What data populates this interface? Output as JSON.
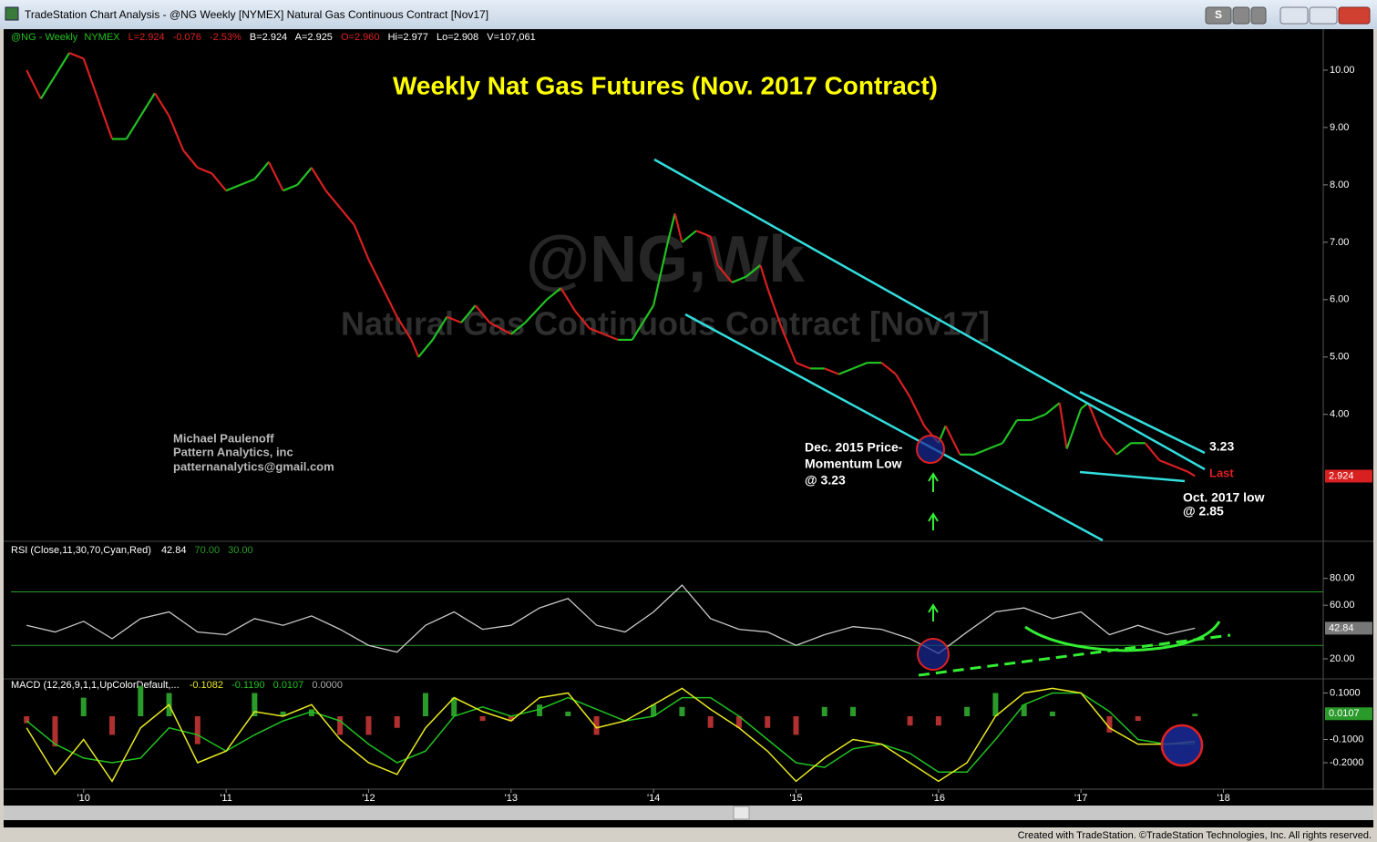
{
  "window": {
    "title": "TradeStation Chart Analysis - @NG Weekly [NYMEX] Natural Gas Continuous Contract [Nov17]",
    "quote": [
      "@NG - Weekly",
      "NYMEX",
      "L=2.924",
      "-0.076",
      "-2.53%",
      "B=2.924",
      "A=2.925",
      "O=2.960",
      "Hi=2.977",
      "Lo=2.908",
      "V=107,061"
    ],
    "footer": "Created with TradeStation. ©TradeStation Technologies, Inc. All rights reserved.",
    "button": "S"
  },
  "chart_data": [
    {
      "type": "candlestick-line",
      "title": "Weekly Nat Gas Futures (Nov. 2017 Contract)",
      "watermark": [
        "@NG,Wk",
        "Natural Gas Continuous Contract [Nov17]"
      ],
      "author": [
        "Michael Paulenoff",
        "Pattern Analytics, inc",
        "patternanalytics@gmail.com"
      ],
      "dec_low": [
        "Dec. 2015 Price-",
        "Momentum Low",
        "@ 3.23"
      ],
      "level": "3.23",
      "last_text": "Last",
      "oct_low": [
        "Oct. 2017 low",
        "@ 2.85"
      ],
      "x": [
        2009.6,
        2009.7,
        2009.8,
        2009.9,
        2010.0,
        2010.1,
        2010.2,
        2010.3,
        2010.45,
        2010.5,
        2010.6,
        2010.7,
        2010.8,
        2010.9,
        2011.0,
        2011.1,
        2011.2,
        2011.3,
        2011.4,
        2011.5,
        2011.6,
        2011.7,
        2011.8,
        2011.9,
        2012.0,
        2012.1,
        2012.2,
        2012.3,
        2012.35,
        2012.45,
        2012.55,
        2012.65,
        2012.75,
        2012.85,
        2013.0,
        2013.1,
        2013.25,
        2013.35,
        2013.45,
        2013.55,
        2013.65,
        2013.75,
        2013.85,
        2014.0,
        2014.1,
        2014.15,
        2014.2,
        2014.3,
        2014.4,
        2014.45,
        2014.55,
        2014.65,
        2014.75,
        2014.8,
        2014.9,
        2015.0,
        2015.1,
        2015.2,
        2015.3,
        2015.4,
        2015.5,
        2015.6,
        2015.7,
        2015.8,
        2015.9,
        2016.0,
        2016.05,
        2016.15,
        2016.25,
        2016.35,
        2016.45,
        2016.55,
        2016.65,
        2016.75,
        2016.85,
        2016.9,
        2017.0,
        2017.05,
        2017.15,
        2017.25,
        2017.35,
        2017.45,
        2017.55,
        2017.65,
        2017.75,
        2017.8
      ],
      "values": [
        10.0,
        9.5,
        9.9,
        10.3,
        10.2,
        9.5,
        8.8,
        8.8,
        9.4,
        9.6,
        9.2,
        8.6,
        8.3,
        8.2,
        7.9,
        8.0,
        8.1,
        8.4,
        7.9,
        8.0,
        8.3,
        7.9,
        7.6,
        7.3,
        6.7,
        6.2,
        5.7,
        5.3,
        5.0,
        5.3,
        5.7,
        5.6,
        5.9,
        5.6,
        5.4,
        5.6,
        6.0,
        6.2,
        5.8,
        5.5,
        5.4,
        5.3,
        5.3,
        5.9,
        7.0,
        7.5,
        7.0,
        7.2,
        7.1,
        6.6,
        6.3,
        6.4,
        6.6,
        6.2,
        5.5,
        4.9,
        4.8,
        4.8,
        4.7,
        4.8,
        4.9,
        4.9,
        4.7,
        4.3,
        3.8,
        3.5,
        3.8,
        3.3,
        3.3,
        3.4,
        3.5,
        3.9,
        3.9,
        4.0,
        4.2,
        3.4,
        4.1,
        4.2,
        3.6,
        3.3,
        3.5,
        3.5,
        3.2,
        3.1,
        3.0,
        2.924
      ],
      "colors": {
        "up": "#22c022",
        "down": "#d82020"
      },
      "last_label": {
        "value": 2.924,
        "label": "2.924"
      },
      "ylim": [
        1.82,
        10.46
      ],
      "yticks": [
        {
          "value": 4,
          "label": "4.00"
        },
        {
          "value": 5,
          "label": "5.00"
        },
        {
          "value": 6,
          "label": "6.00"
        },
        {
          "value": 7,
          "label": "7.00"
        },
        {
          "value": 8,
          "label": "8.00"
        },
        {
          "value": 9,
          "label": "9.00"
        },
        {
          "value": 10,
          "label": "10.00"
        }
      ]
    },
    {
      "type": "line",
      "title": "RSI (Close,11,30,70,Cyan,Red)",
      "x": [
        2009.6,
        2009.8,
        2010.0,
        2010.2,
        2010.4,
        2010.6,
        2010.8,
        2011.0,
        2011.2,
        2011.4,
        2011.6,
        2011.8,
        2012.0,
        2012.2,
        2012.4,
        2012.6,
        2012.8,
        2013.0,
        2013.2,
        2013.4,
        2013.6,
        2013.8,
        2014.0,
        2014.2,
        2014.4,
        2014.6,
        2014.8,
        2015.0,
        2015.2,
        2015.4,
        2015.6,
        2015.8,
        2016.0,
        2016.2,
        2016.4,
        2016.6,
        2016.8,
        2017.0,
        2017.2,
        2017.4,
        2017.6,
        2017.8
      ],
      "values": [
        45,
        40,
        48,
        35,
        50,
        55,
        40,
        38,
        50,
        45,
        52,
        42,
        30,
        25,
        45,
        55,
        42,
        45,
        58,
        65,
        45,
        40,
        55,
        75,
        50,
        42,
        40,
        30,
        38,
        44,
        42,
        35,
        24,
        40,
        55,
        58,
        50,
        55,
        38,
        45,
        38,
        42.84
      ],
      "color": "#c8c8c8",
      "last_label": {
        "value": 42.84,
        "label": "42.84"
      },
      "levels": [
        {
          "value": 70,
          "label": "70.00",
          "color": "#2a9a2a"
        },
        {
          "value": 30,
          "label": "30.00",
          "color": "#2a9a2a"
        }
      ],
      "ylim": [
        5,
        105
      ],
      "yticks": [
        {
          "value": 20,
          "label": "20.00"
        },
        {
          "value": 60,
          "label": "60.00"
        },
        {
          "value": 80,
          "label": "80.00"
        }
      ]
    },
    {
      "type": "macd",
      "title": "MACD (12,26,9,1,1,UpColorDefault,...",
      "readings": [
        {
          "value": -0.1082,
          "label": "-0.1082"
        },
        {
          "value": -0.119,
          "label": "-0.1190"
        },
        {
          "value": 0.0107,
          "label": "0.0107"
        },
        {
          "value": 0,
          "label": "0.0000"
        }
      ],
      "x": [
        2009.6,
        2009.8,
        2010.0,
        2010.2,
        2010.4,
        2010.6,
        2010.8,
        2011.0,
        2011.2,
        2011.4,
        2011.6,
        2011.8,
        2012.0,
        2012.2,
        2012.4,
        2012.6,
        2012.8,
        2013.0,
        2013.2,
        2013.4,
        2013.6,
        2013.8,
        2014.0,
        2014.2,
        2014.4,
        2014.6,
        2014.8,
        2015.0,
        2015.2,
        2015.4,
        2015.6,
        2015.8,
        2016.0,
        2016.2,
        2016.4,
        2016.6,
        2016.8,
        2017.0,
        2017.2,
        2017.4,
        2017.6,
        2017.8
      ],
      "macd": {
        "color": "#e8e820",
        "values": [
          -0.05,
          -0.25,
          -0.1,
          -0.28,
          -0.05,
          0.05,
          -0.2,
          -0.15,
          0.02,
          0.0,
          0.05,
          -0.1,
          -0.2,
          -0.25,
          -0.05,
          0.08,
          0.02,
          -0.02,
          0.08,
          0.1,
          -0.05,
          -0.02,
          0.05,
          0.12,
          0.03,
          -0.05,
          -0.15,
          -0.28,
          -0.18,
          -0.1,
          -0.12,
          -0.2,
          -0.28,
          -0.2,
          0.0,
          0.1,
          0.12,
          0.1,
          -0.05,
          -0.12,
          -0.12,
          -0.1082
        ]
      },
      "signal": {
        "color": "#20c020",
        "values": [
          -0.02,
          -0.12,
          -0.18,
          -0.2,
          -0.18,
          -0.05,
          -0.08,
          -0.15,
          -0.08,
          -0.02,
          0.02,
          -0.02,
          -0.12,
          -0.2,
          -0.15,
          0.0,
          0.04,
          0.0,
          0.03,
          0.08,
          0.03,
          -0.02,
          0.0,
          0.08,
          0.08,
          0.0,
          -0.1,
          -0.2,
          -0.22,
          -0.14,
          -0.12,
          -0.16,
          -0.24,
          -0.24,
          -0.1,
          0.05,
          0.1,
          0.1,
          0.02,
          -0.1,
          -0.12,
          -0.119
        ]
      },
      "histogram": {
        "up": "#2a9a2a",
        "down": "#b03030",
        "values": [
          -0.03,
          -0.13,
          0.08,
          -0.08,
          0.13,
          0.1,
          -0.12,
          0.0,
          0.1,
          0.02,
          0.03,
          -0.08,
          -0.08,
          -0.05,
          0.1,
          0.08,
          -0.02,
          -0.02,
          0.05,
          0.02,
          -0.08,
          0.0,
          0.05,
          0.04,
          -0.05,
          -0.05,
          -0.05,
          -0.08,
          0.04,
          0.04,
          0.0,
          -0.04,
          -0.04,
          0.04,
          0.1,
          0.05,
          0.02,
          0.0,
          -0.07,
          -0.02,
          0.0,
          0.0107
        ]
      },
      "ylim": [
        -0.298,
        0.149
      ],
      "yticks": [
        {
          "value": 0.1,
          "label": "0.1000"
        },
        {
          "value": -0.1,
          "label": "-0.1000"
        },
        {
          "value": -0.2,
          "label": "-0.2000"
        }
      ],
      "xlim": [
        2009.49,
        2018.7
      ],
      "xticks": [
        {
          "value": 2010,
          "label": "'10"
        },
        {
          "value": 2011,
          "label": "'11"
        },
        {
          "value": 2012,
          "label": "'12"
        },
        {
          "value": 2013,
          "label": "'13"
        },
        {
          "value": 2014,
          "label": "'14"
        },
        {
          "value": 2015,
          "label": "'15"
        },
        {
          "value": 2016,
          "label": "'16"
        },
        {
          "value": 2017,
          "label": "'17"
        },
        {
          "value": 2018,
          "label": "'18"
        }
      ]
    }
  ]
}
